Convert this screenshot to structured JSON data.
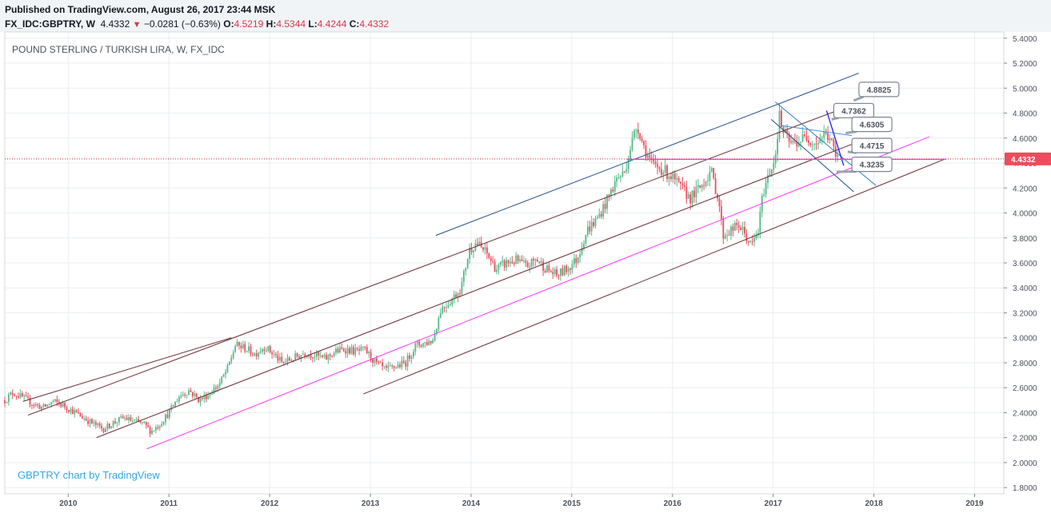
{
  "header": {
    "published": "Published on TradingView.com, August 26, 2017 23:44 MSK",
    "symbol": "FX_IDC:GBPTRY, W",
    "last": "4.4332",
    "arrow": "▼",
    "change": "−0.0281 (−0.63%)",
    "o_label": "O:",
    "o_val": "4.5219",
    "h_label": "H:",
    "h_val": "4.5344",
    "l_label": "L:",
    "l_val": "4.4244",
    "c_label": "C:",
    "c_val": "4.4332"
  },
  "chart_title": "POUND STERLING / TURKISH LIRA, W, FX_IDC",
  "watermark": "GBPTRY chart by TradingView",
  "last_price_label": "4.4332",
  "colors": {
    "up": "#53b987",
    "down": "#eb4d5c",
    "channel_outer": "#6b2a34",
    "channel_blue": "#1f4e8c",
    "magenta": "#ff33ff",
    "price_line": "#e03030",
    "grid": "#e9eef2",
    "axis_text": "#4c525e",
    "watermark": "#35a7e0"
  },
  "annotations": [
    "4.8825",
    "4.7362",
    "4.6305",
    "4.4715",
    "4.3235"
  ],
  "chart_data": {
    "type": "candlestick",
    "title": "POUND STERLING / TURKISH LIRA, W, FX_IDC",
    "y_ticks": [
      "5.4000",
      "5.2000",
      "5.0000",
      "4.8000",
      "4.6000",
      "4.4000",
      "4.2000",
      "4.0000",
      "3.8000",
      "3.6000",
      "3.4000",
      "3.2000",
      "3.0000",
      "2.8000",
      "2.6000",
      "2.4000",
      "2.2000",
      "2.0000",
      "1.8000"
    ],
    "x_ticks": [
      "2010",
      "2011",
      "2012",
      "2013",
      "2014",
      "2015",
      "2016",
      "2017",
      "2018",
      "2019"
    ],
    "ylim": [
      1.75,
      5.45
    ],
    "xlim": [
      2009.37,
      2019.29
    ],
    "last_price": 4.4332,
    "close_path": [
      [
        2009.37,
        2.5
      ],
      [
        2009.45,
        2.56
      ],
      [
        2009.55,
        2.52
      ],
      [
        2009.65,
        2.47
      ],
      [
        2009.75,
        2.44
      ],
      [
        2009.85,
        2.49
      ],
      [
        2009.95,
        2.46
      ],
      [
        2010.05,
        2.41
      ],
      [
        2010.15,
        2.36
      ],
      [
        2010.25,
        2.31
      ],
      [
        2010.35,
        2.27
      ],
      [
        2010.45,
        2.32
      ],
      [
        2010.55,
        2.36
      ],
      [
        2010.65,
        2.33
      ],
      [
        2010.75,
        2.31
      ],
      [
        2010.82,
        2.25
      ],
      [
        2010.9,
        2.3
      ],
      [
        2011.0,
        2.4
      ],
      [
        2011.1,
        2.53
      ],
      [
        2011.2,
        2.58
      ],
      [
        2011.3,
        2.5
      ],
      [
        2011.4,
        2.55
      ],
      [
        2011.5,
        2.63
      ],
      [
        2011.58,
        2.75
      ],
      [
        2011.66,
        2.94
      ],
      [
        2011.75,
        2.92
      ],
      [
        2011.85,
        2.87
      ],
      [
        2011.95,
        2.93
      ],
      [
        2012.05,
        2.86
      ],
      [
        2012.12,
        2.8
      ],
      [
        2012.22,
        2.83
      ],
      [
        2012.35,
        2.88
      ],
      [
        2012.45,
        2.86
      ],
      [
        2012.55,
        2.83
      ],
      [
        2012.65,
        2.89
      ],
      [
        2012.75,
        2.91
      ],
      [
        2012.85,
        2.89
      ],
      [
        2012.95,
        2.9
      ],
      [
        2013.05,
        2.8
      ],
      [
        2013.15,
        2.74
      ],
      [
        2013.25,
        2.77
      ],
      [
        2013.35,
        2.8
      ],
      [
        2013.45,
        2.94
      ],
      [
        2013.55,
        2.96
      ],
      [
        2013.62,
        2.98
      ],
      [
        2013.7,
        3.23
      ],
      [
        2013.8,
        3.3
      ],
      [
        2013.9,
        3.4
      ],
      [
        2013.98,
        3.7
      ],
      [
        2014.05,
        3.76
      ],
      [
        2014.15,
        3.68
      ],
      [
        2014.25,
        3.55
      ],
      [
        2014.35,
        3.6
      ],
      [
        2014.45,
        3.62
      ],
      [
        2014.55,
        3.57
      ],
      [
        2014.65,
        3.63
      ],
      [
        2014.75,
        3.55
      ],
      [
        2014.85,
        3.5
      ],
      [
        2014.95,
        3.55
      ],
      [
        2015.05,
        3.63
      ],
      [
        2015.15,
        3.86
      ],
      [
        2015.25,
        3.95
      ],
      [
        2015.35,
        4.1
      ],
      [
        2015.45,
        4.28
      ],
      [
        2015.52,
        4.32
      ],
      [
        2015.58,
        4.52
      ],
      [
        2015.65,
        4.71
      ],
      [
        2015.72,
        4.52
      ],
      [
        2015.8,
        4.38
      ],
      [
        2015.88,
        4.36
      ],
      [
        2015.98,
        4.3
      ],
      [
        2016.08,
        4.2
      ],
      [
        2016.18,
        4.12
      ],
      [
        2016.28,
        4.21
      ],
      [
        2016.38,
        4.34
      ],
      [
        2016.46,
        4.1
      ],
      [
        2016.5,
        3.82
      ],
      [
        2016.58,
        3.86
      ],
      [
        2016.66,
        3.9
      ],
      [
        2016.74,
        3.8
      ],
      [
        2016.78,
        3.73
      ],
      [
        2016.85,
        3.85
      ],
      [
        2016.9,
        4.17
      ],
      [
        2016.96,
        4.32
      ],
      [
        2017.02,
        4.45
      ],
      [
        2017.06,
        4.78
      ],
      [
        2017.1,
        4.64
      ],
      [
        2017.18,
        4.55
      ],
      [
        2017.26,
        4.58
      ],
      [
        2017.34,
        4.61
      ],
      [
        2017.42,
        4.56
      ],
      [
        2017.5,
        4.63
      ],
      [
        2017.56,
        4.61
      ],
      [
        2017.62,
        4.45
      ],
      [
        2017.64,
        4.43
      ]
    ],
    "lines": [
      {
        "name": "",
        "points": [
          [
            2009.55,
            2.49
          ],
          [
            2011.62,
            3.0
          ]
        ]
      },
      {
        "name": "",
        "points": [
          [
            2013.65,
            3.82
          ],
          [
            2017.85,
            5.12
          ]
        ]
      },
      {
        "name": "",
        "points": [
          [
            2009.6,
            2.38
          ],
          [
            2017.7,
            4.84
          ]
        ]
      },
      {
        "name": "",
        "points": [
          [
            2010.28,
            2.2
          ],
          [
            2017.78,
            4.55
          ]
        ]
      },
      {
        "name": "",
        "points": [
          [
            2010.78,
            2.11
          ],
          [
            2018.55,
            4.61
          ]
        ]
      },
      {
        "name": "",
        "points": [
          [
            2012.93,
            2.55
          ],
          [
            2018.7,
            4.43
          ]
        ]
      },
      {
        "name": "",
        "points": [
          [
            2017.02,
            4.89
          ],
          [
            2018.02,
            4.22
          ]
        ]
      },
      {
        "name": "",
        "points": [
          [
            2016.98,
            4.75
          ],
          [
            2017.8,
            4.17
          ]
        ]
      },
      {
        "name": "",
        "points": [
          [
            2017.08,
            4.7
          ],
          [
            2017.78,
            4.62
          ]
        ]
      },
      {
        "name": "",
        "points": [
          [
            2017.53,
            4.82
          ],
          [
            2017.7,
            4.38
          ]
        ]
      },
      {
        "name": "",
        "points": [
          [
            2015.55,
            4.43
          ],
          [
            2018.72,
            4.43
          ]
        ]
      }
    ]
  }
}
